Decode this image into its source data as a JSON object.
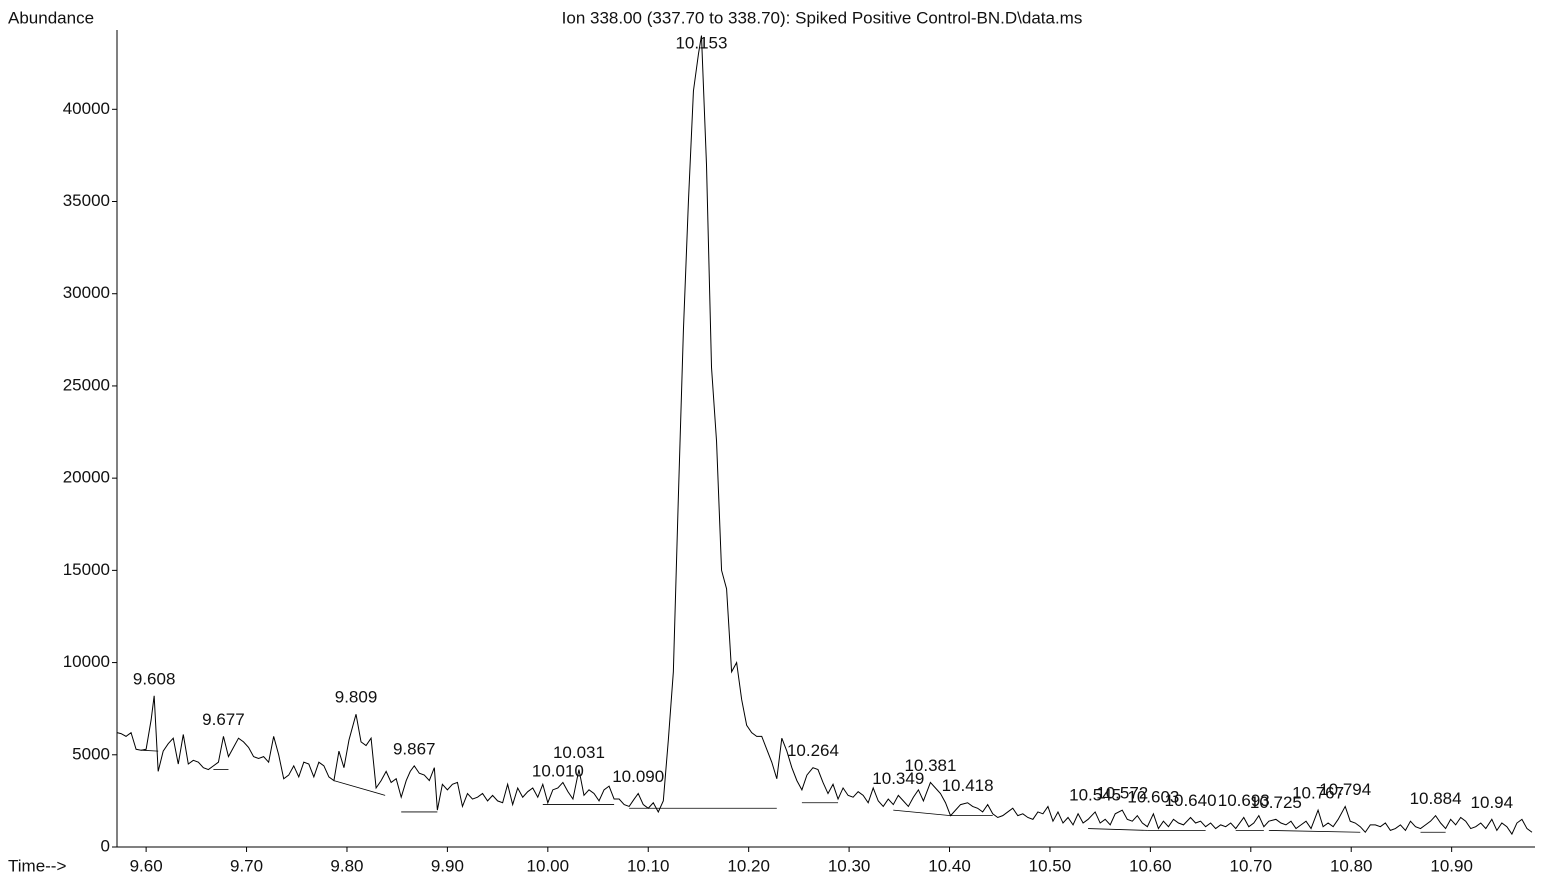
{
  "chart_data": {
    "type": "line",
    "title": "Ion 338.00 (337.70 to 338.70): Spiked Positive Control-BN.D\\data.ms",
    "y_label": "Abundance",
    "x_label": "Time-->",
    "color": "#000000",
    "xlim": [
      9.571,
      10.983
    ],
    "ylim": [
      0,
      44300
    ],
    "xticks": [
      {
        "value": 9.6,
        "label": "9.60"
      },
      {
        "value": 9.7,
        "label": "9.70"
      },
      {
        "value": 9.8,
        "label": "9.80"
      },
      {
        "value": 9.9,
        "label": "9.90"
      },
      {
        "value": 10.0,
        "label": "10.00"
      },
      {
        "value": 10.1,
        "label": "10.10"
      },
      {
        "value": 10.2,
        "label": "10.20"
      },
      {
        "value": 10.3,
        "label": "10.30"
      },
      {
        "value": 10.4,
        "label": "10.40"
      },
      {
        "value": 10.5,
        "label": "10.50"
      },
      {
        "value": 10.6,
        "label": "10.60"
      },
      {
        "value": 10.7,
        "label": "10.70"
      },
      {
        "value": 10.8,
        "label": "10.80"
      },
      {
        "value": 10.9,
        "label": "10.90"
      }
    ],
    "yticks": [
      0,
      5000,
      10000,
      15000,
      20000,
      25000,
      30000,
      35000,
      40000
    ],
    "x": [
      9.571,
      9.575,
      9.58,
      9.585,
      9.59,
      9.595,
      9.6,
      9.605,
      9.608,
      9.612,
      9.617,
      9.622,
      9.627,
      9.632,
      9.637,
      9.642,
      9.647,
      9.652,
      9.657,
      9.662,
      9.667,
      9.672,
      9.677,
      9.682,
      9.687,
      9.692,
      9.697,
      9.702,
      9.707,
      9.712,
      9.717,
      9.722,
      9.727,
      9.732,
      9.737,
      9.742,
      9.747,
      9.752,
      9.757,
      9.762,
      9.767,
      9.772,
      9.777,
      9.782,
      9.787,
      9.792,
      9.797,
      9.802,
      9.809,
      9.814,
      9.819,
      9.824,
      9.829,
      9.834,
      9.839,
      9.844,
      9.849,
      9.854,
      9.859,
      9.863,
      9.867,
      9.872,
      9.877,
      9.882,
      9.887,
      9.89,
      9.895,
      9.9,
      9.905,
      9.91,
      9.915,
      9.92,
      9.925,
      9.93,
      9.935,
      9.94,
      9.945,
      9.95,
      9.955,
      9.96,
      9.965,
      9.97,
      9.975,
      9.98,
      9.985,
      9.99,
      9.995,
      10.0,
      10.005,
      10.01,
      10.015,
      10.02,
      10.025,
      10.031,
      10.036,
      10.041,
      10.046,
      10.051,
      10.056,
      10.061,
      10.066,
      10.071,
      10.076,
      10.081,
      10.086,
      10.09,
      10.095,
      10.1,
      10.105,
      10.11,
      10.115,
      10.12,
      10.125,
      10.13,
      10.135,
      10.14,
      10.145,
      10.15,
      10.153,
      10.158,
      10.163,
      10.168,
      10.173,
      10.178,
      10.183,
      10.188,
      10.193,
      10.198,
      10.203,
      10.208,
      10.213,
      10.218,
      10.223,
      10.228,
      10.233,
      10.238,
      10.243,
      10.248,
      10.253,
      10.258,
      10.264,
      10.269,
      10.274,
      10.279,
      10.284,
      10.289,
      10.294,
      10.299,
      10.304,
      10.309,
      10.314,
      10.319,
      10.324,
      10.329,
      10.334,
      10.339,
      10.344,
      10.349,
      10.354,
      10.359,
      10.364,
      10.369,
      10.374,
      10.381,
      10.386,
      10.391,
      10.396,
      10.401,
      10.406,
      10.411,
      10.418,
      10.423,
      10.428,
      10.433,
      10.438,
      10.443,
      10.448,
      10.453,
      10.458,
      10.463,
      10.468,
      10.473,
      10.478,
      10.483,
      10.488,
      10.493,
      10.498,
      10.503,
      10.508,
      10.513,
      10.518,
      10.523,
      10.528,
      10.533,
      10.538,
      10.545,
      10.55,
      10.555,
      10.56,
      10.565,
      10.572,
      10.577,
      10.582,
      10.587,
      10.592,
      10.597,
      10.603,
      10.608,
      10.613,
      10.618,
      10.623,
      10.628,
      10.633,
      10.64,
      10.645,
      10.65,
      10.655,
      10.66,
      10.665,
      10.67,
      10.675,
      10.68,
      10.685,
      10.693,
      10.698,
      10.703,
      10.708,
      10.713,
      10.718,
      10.725,
      10.73,
      10.735,
      10.74,
      10.745,
      10.75,
      10.755,
      10.76,
      10.767,
      10.772,
      10.777,
      10.782,
      10.787,
      10.794,
      10.799,
      10.804,
      10.809,
      10.814,
      10.819,
      10.824,
      10.829,
      10.834,
      10.839,
      10.844,
      10.849,
      10.854,
      10.859,
      10.864,
      10.869,
      10.874,
      10.879,
      10.884,
      10.889,
      10.894,
      10.899,
      10.904,
      10.909,
      10.914,
      10.919,
      10.924,
      10.929,
      10.934,
      10.94,
      10.945,
      10.95,
      10.955,
      10.96,
      10.965,
      10.97,
      10.975,
      10.98
    ],
    "values": [
      6200,
      6150,
      6000,
      6200,
      5300,
      5250,
      5300,
      6900,
      8200,
      4100,
      5200,
      5600,
      5900,
      4500,
      6100,
      4500,
      4700,
      4600,
      4300,
      4200,
      4400,
      4600,
      6000,
      4900,
      5400,
      5900,
      5700,
      5400,
      4900,
      4800,
      4900,
      4600,
      6000,
      5000,
      3700,
      3900,
      4400,
      3800,
      4600,
      4500,
      3800,
      4600,
      4400,
      3800,
      3600,
      5200,
      4300,
      5800,
      7200,
      5700,
      5500,
      5900,
      3200,
      3600,
      4100,
      3500,
      3700,
      2700,
      3600,
      4100,
      4400,
      4000,
      3900,
      3600,
      4300,
      2000,
      3400,
      3100,
      3400,
      3500,
      2200,
      2900,
      2600,
      2700,
      2900,
      2500,
      2800,
      2500,
      2400,
      3400,
      2300,
      3200,
      2700,
      3000,
      3200,
      2700,
      3400,
      2400,
      3100,
      3200,
      3500,
      3000,
      2600,
      4200,
      2800,
      3100,
      2900,
      2500,
      3100,
      3300,
      2600,
      2600,
      2300,
      2200,
      2600,
      2900,
      2300,
      2100,
      2400,
      1900,
      2500,
      5800,
      9500,
      19000,
      28000,
      35000,
      41000,
      43000,
      44000,
      37000,
      26000,
      22000,
      15000,
      14000,
      9500,
      10000,
      8000,
      6600,
      6200,
      6000,
      6000,
      5300,
      4600,
      3700,
      5900,
      5200,
      4300,
      3600,
      3100,
      3900,
      4300,
      4200,
      3500,
      2900,
      3400,
      2600,
      3200,
      2800,
      2700,
      3000,
      2800,
      2400,
      3200,
      2500,
      2200,
      2600,
      2300,
      2800,
      2500,
      2200,
      2700,
      3100,
      2500,
      3500,
      3200,
      2900,
      2400,
      1700,
      2000,
      2300,
      2400,
      2200,
      2100,
      1900,
      2300,
      1800,
      1600,
      1700,
      1900,
      2100,
      1700,
      1800,
      1600,
      1500,
      1900,
      1800,
      2200,
      1400,
      1900,
      1300,
      1600,
      1200,
      1800,
      1300,
      1500,
      1900,
      1300,
      1500,
      1200,
      1800,
      2000,
      1500,
      1400,
      1700,
      1300,
      1100,
      1800,
      1000,
      1400,
      1100,
      1500,
      1300,
      1200,
      1600,
      1300,
      1400,
      1100,
      1300,
      1000,
      1200,
      1100,
      1300,
      1000,
      1600,
      1100,
      1300,
      1700,
      1100,
      1400,
      1500,
      1300,
      1200,
      1400,
      1000,
      1200,
      1400,
      1000,
      2000,
      1100,
      1300,
      1100,
      1500,
      2200,
      1400,
      1300,
      1100,
      800,
      1200,
      1200,
      1100,
      1300,
      900,
      1000,
      1200,
      900,
      1400,
      1100,
      1000,
      1200,
      1400,
      1700,
      1300,
      1000,
      1500,
      1200,
      1600,
      1400,
      1000,
      1100,
      1300,
      1000,
      1500,
      900,
      1300,
      1100,
      700,
      1300,
      1500,
      1000,
      800
    ],
    "annotations": [
      {
        "x": 9.608,
        "y": 8200,
        "text": "9.608"
      },
      {
        "x": 9.677,
        "y": 6000,
        "text": "9.677"
      },
      {
        "x": 9.809,
        "y": 7200,
        "text": "9.809"
      },
      {
        "x": 9.867,
        "y": 4400,
        "text": "9.867"
      },
      {
        "x": 10.01,
        "y": 3200,
        "text": "10.010"
      },
      {
        "x": 10.031,
        "y": 4200,
        "text": "10.031"
      },
      {
        "x": 10.09,
        "y": 2900,
        "text": "10.090"
      },
      {
        "x": 10.153,
        "y": 44000,
        "text": "10.153"
      },
      {
        "x": 10.264,
        "y": 4300,
        "text": "10.264"
      },
      {
        "x": 10.349,
        "y": 2800,
        "text": "10.349"
      },
      {
        "x": 10.381,
        "y": 3500,
        "text": "10.381"
      },
      {
        "x": 10.418,
        "y": 2400,
        "text": "10.418"
      },
      {
        "x": 10.545,
        "y": 1900,
        "text": "10.545"
      },
      {
        "x": 10.572,
        "y": 2000,
        "text": "10.572"
      },
      {
        "x": 10.603,
        "y": 1800,
        "text": "10.603"
      },
      {
        "x": 10.64,
        "y": 1600,
        "text": "10.640"
      },
      {
        "x": 10.693,
        "y": 1600,
        "text": "10.693"
      },
      {
        "x": 10.725,
        "y": 1500,
        "text": "10.725"
      },
      {
        "x": 10.767,
        "y": 2000,
        "text": "10.767"
      },
      {
        "x": 10.794,
        "y": 2200,
        "text": "10.794"
      },
      {
        "x": 10.884,
        "y": 1700,
        "text": "10.884"
      },
      {
        "x": 10.94,
        "y": 1500,
        "text": "10.94"
      }
    ],
    "baselines": [
      {
        "x1": 9.595,
        "y1": 5250,
        "x2": 9.612,
        "y2": 5200
      },
      {
        "x1": 9.667,
        "y1": 4200,
        "x2": 9.682,
        "y2": 4200
      },
      {
        "x1": 9.787,
        "y1": 3600,
        "x2": 9.838,
        "y2": 2800
      },
      {
        "x1": 9.854,
        "y1": 1900,
        "x2": 9.89,
        "y2": 1900
      },
      {
        "x1": 9.995,
        "y1": 2300,
        "x2": 10.066,
        "y2": 2300
      },
      {
        "x1": 10.081,
        "y1": 2100,
        "x2": 10.228,
        "y2": 2100
      },
      {
        "x1": 10.253,
        "y1": 2400,
        "x2": 10.289,
        "y2": 2400
      },
      {
        "x1": 10.344,
        "y1": 2000,
        "x2": 10.401,
        "y2": 1700
      },
      {
        "x1": 10.401,
        "y1": 1700,
        "x2": 10.443,
        "y2": 1700
      },
      {
        "x1": 10.538,
        "y1": 1000,
        "x2": 10.597,
        "y2": 900
      },
      {
        "x1": 10.597,
        "y1": 900,
        "x2": 10.655,
        "y2": 900
      },
      {
        "x1": 10.685,
        "y1": 900,
        "x2": 10.713,
        "y2": 900
      },
      {
        "x1": 10.718,
        "y1": 900,
        "x2": 10.809,
        "y2": 800
      },
      {
        "x1": 10.869,
        "y1": 800,
        "x2": 10.894,
        "y2": 800
      }
    ]
  }
}
